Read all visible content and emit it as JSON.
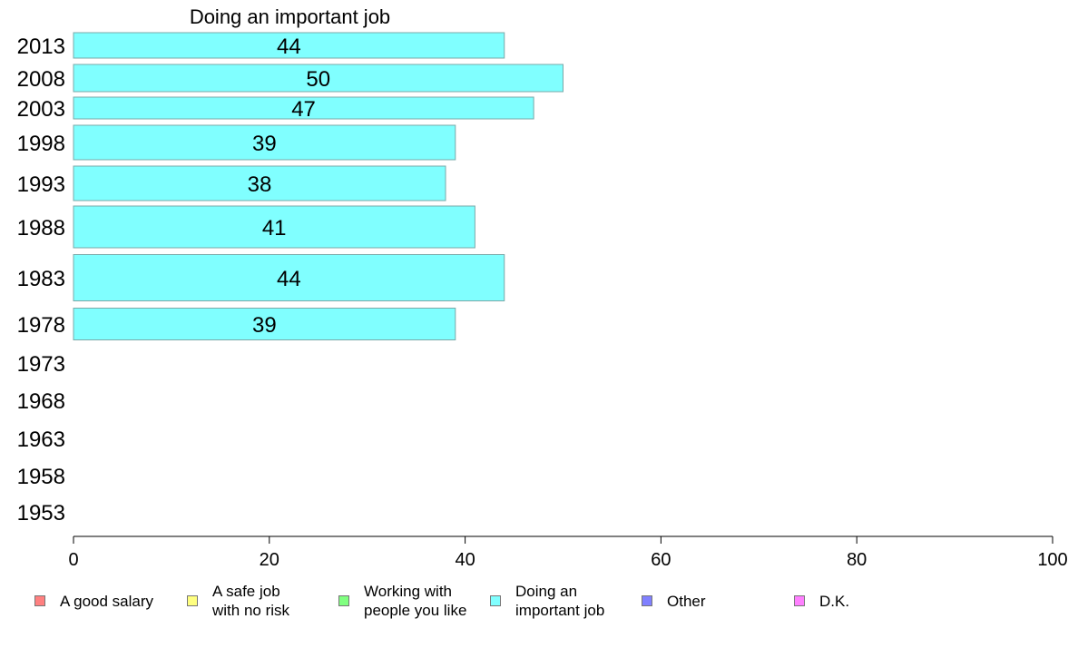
{
  "chart_data": {
    "type": "bar",
    "orientation": "horizontal",
    "title": "Doing an important job",
    "categories": [
      "2013",
      "2008",
      "2003",
      "1998",
      "1993",
      "1988",
      "1983",
      "1978",
      "1973",
      "1968",
      "1963",
      "1958",
      "1953"
    ],
    "series": [
      {
        "name": "Doing an important job",
        "color": "#80ffff",
        "values": [
          44,
          50,
          47,
          39,
          38,
          41,
          44,
          39,
          null,
          null,
          null,
          null,
          null
        ]
      }
    ],
    "xlim": [
      0,
      100
    ],
    "xticks": [
      "0",
      "20",
      "40",
      "60",
      "80",
      "100"
    ],
    "grid": false,
    "legend_position": "bottom",
    "legend": [
      {
        "label": "A good salary",
        "color": "#ff8080"
      },
      {
        "label": "A safe job\nwith no risk",
        "color": "#ffff80"
      },
      {
        "label": "Working with\npeople you like",
        "color": "#80ff80"
      },
      {
        "label": "Doing an\nimportant job",
        "color": "#80ffff"
      },
      {
        "label": "Other",
        "color": "#8080ff"
      },
      {
        "label": "D.K.",
        "color": "#ff80ff"
      }
    ]
  }
}
